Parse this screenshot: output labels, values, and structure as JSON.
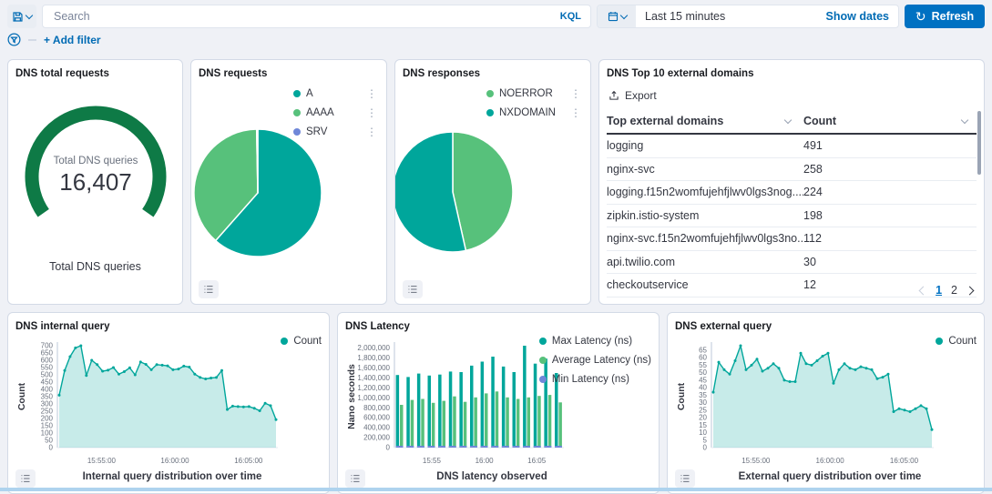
{
  "header": {
    "search_placeholder": "Search",
    "kql_label": "KQL",
    "time_range": "Last 15 minutes",
    "show_dates_label": "Show dates",
    "refresh_label": "Refresh"
  },
  "filter_bar": {
    "add_filter_label": "+ Add filter"
  },
  "table_panel": {
    "title": "DNS Top 10 external domains",
    "export_label": "Export",
    "columns": [
      "Top external domains",
      "Count"
    ],
    "rows": [
      {
        "domain": "logging",
        "count": "491"
      },
      {
        "domain": "nginx-svc",
        "count": "258"
      },
      {
        "domain": "logging.f15n2womfujehfjlwv0lgs3nog....",
        "count": "224"
      },
      {
        "domain": "zipkin.istio-system",
        "count": "198"
      },
      {
        "domain": "nginx-svc.f15n2womfujehfjlwv0lgs3no...",
        "count": "112"
      },
      {
        "domain": "api.twilio.com",
        "count": "30"
      },
      {
        "domain": "checkoutservice",
        "count": "12"
      }
    ],
    "pagination": {
      "pages": [
        "1",
        "2"
      ],
      "active": "1"
    }
  },
  "colors": {
    "teal": "#00a69b",
    "green": "#57c17b",
    "purple": "#6f87d8",
    "gauge_green": "#0e7a46",
    "link_blue": "#006bb4",
    "primary_blue": "#0071c2"
  },
  "chart_data": [
    {
      "id": "gauge",
      "type": "gauge",
      "title": "DNS total requests",
      "value": 16407,
      "display_value": "16,407",
      "center_label": "Total DNS queries",
      "bottom_label": "Total DNS queries",
      "color": "#0e7a46"
    },
    {
      "id": "requests",
      "type": "pie",
      "title": "DNS requests",
      "slices": [
        {
          "label": "A",
          "pct": 61.5,
          "color": "#00a69b"
        },
        {
          "label": "AAAA",
          "pct": 38.2,
          "color": "#57c17b"
        },
        {
          "label": "SRV",
          "pct": 0.3,
          "color": "#6f87d8"
        }
      ]
    },
    {
      "id": "responses",
      "type": "pie",
      "title": "DNS responses",
      "slices": [
        {
          "label": "NOERROR",
          "pct": 46.5,
          "color": "#57c17b"
        },
        {
          "label": "NXDOMAIN",
          "pct": 53.5,
          "color": "#00a69b"
        }
      ]
    },
    {
      "id": "internal",
      "type": "area",
      "title": "DNS internal query",
      "xlabel": "Internal query distribution over time",
      "ylabel": "Count",
      "legend": [
        {
          "label": "Count",
          "color": "#00a69b"
        }
      ],
      "ylim": [
        0,
        700
      ],
      "ytick_step": 50,
      "xticks": [
        {
          "label": "15:55:00",
          "f": 0.2
        },
        {
          "label": "16:00:00",
          "f": 0.533
        },
        {
          "label": "16:05:00",
          "f": 0.867
        }
      ],
      "values": [
        360,
        530,
        625,
        685,
        700,
        495,
        600,
        570,
        525,
        532,
        550,
        505,
        522,
        548,
        500,
        588,
        572,
        535,
        570,
        566,
        562,
        535,
        540,
        560,
        553,
        505,
        482,
        472,
        478,
        482,
        530,
        262,
        285,
        282,
        280,
        282,
        270,
        253,
        305,
        288,
        192
      ]
    },
    {
      "id": "latency",
      "type": "bar",
      "title": "DNS Latency",
      "xlabel": "DNS latency observed",
      "ylabel": "Nano seconds",
      "legend": [
        {
          "label": "Max Latency (ns)",
          "color": "#00a69b"
        },
        {
          "label": "Average Latency (ns)",
          "color": "#57c17b"
        },
        {
          "label": "Min Latency (ns)",
          "color": "#6f87d8"
        }
      ],
      "ylim": [
        0,
        2000000
      ],
      "ytick_step": 200000,
      "yfmt": "comma",
      "xticks": [
        {
          "label": "15:55",
          "f": 0.22
        },
        {
          "label": "16:00",
          "f": 0.53
        },
        {
          "label": "16:05",
          "f": 0.84
        }
      ],
      "series": [
        {
          "name": "Max Latency (ns)",
          "color": "#00a69b",
          "values": [
            1460000,
            1420000,
            1490000,
            1450000,
            1470000,
            1530000,
            1520000,
            1650000,
            1730000,
            1830000,
            1630000,
            1520000,
            2050000,
            1690000,
            1790000,
            1500000
          ]
        },
        {
          "name": "Average Latency (ns)",
          "color": "#57c17b",
          "values": [
            860000,
            960000,
            980000,
            900000,
            940000,
            1030000,
            920000,
            1010000,
            1090000,
            1130000,
            1010000,
            980000,
            1010000,
            1040000,
            1060000,
            910000
          ]
        },
        {
          "name": "Min Latency (ns)",
          "color": "#6f87d8",
          "values": [
            30000,
            30000,
            30000,
            30000,
            30000,
            30000,
            30000,
            30000,
            30000,
            30000,
            30000,
            30000,
            30000,
            30000,
            30000,
            30000
          ]
        }
      ]
    },
    {
      "id": "external",
      "type": "area",
      "title": "DNS external query",
      "xlabel": "External query distribution over time",
      "ylabel": "Count",
      "legend": [
        {
          "label": "Count",
          "color": "#00a69b"
        }
      ],
      "ylim": [
        0,
        65
      ],
      "ytick_step": 5,
      "xticks": [
        {
          "label": "15:55:00",
          "f": 0.2
        },
        {
          "label": "16:00:00",
          "f": 0.533
        },
        {
          "label": "16:05:00",
          "f": 0.867
        }
      ],
      "values": [
        37,
        57,
        52,
        49,
        58,
        68,
        52,
        55,
        59,
        51,
        53,
        56,
        53,
        45,
        44,
        44,
        63,
        56,
        55,
        58,
        61,
        63,
        43,
        52,
        56,
        53,
        52,
        54,
        53,
        52,
        46,
        47,
        49,
        24,
        26,
        25,
        24,
        26,
        28,
        26,
        12
      ]
    }
  ]
}
